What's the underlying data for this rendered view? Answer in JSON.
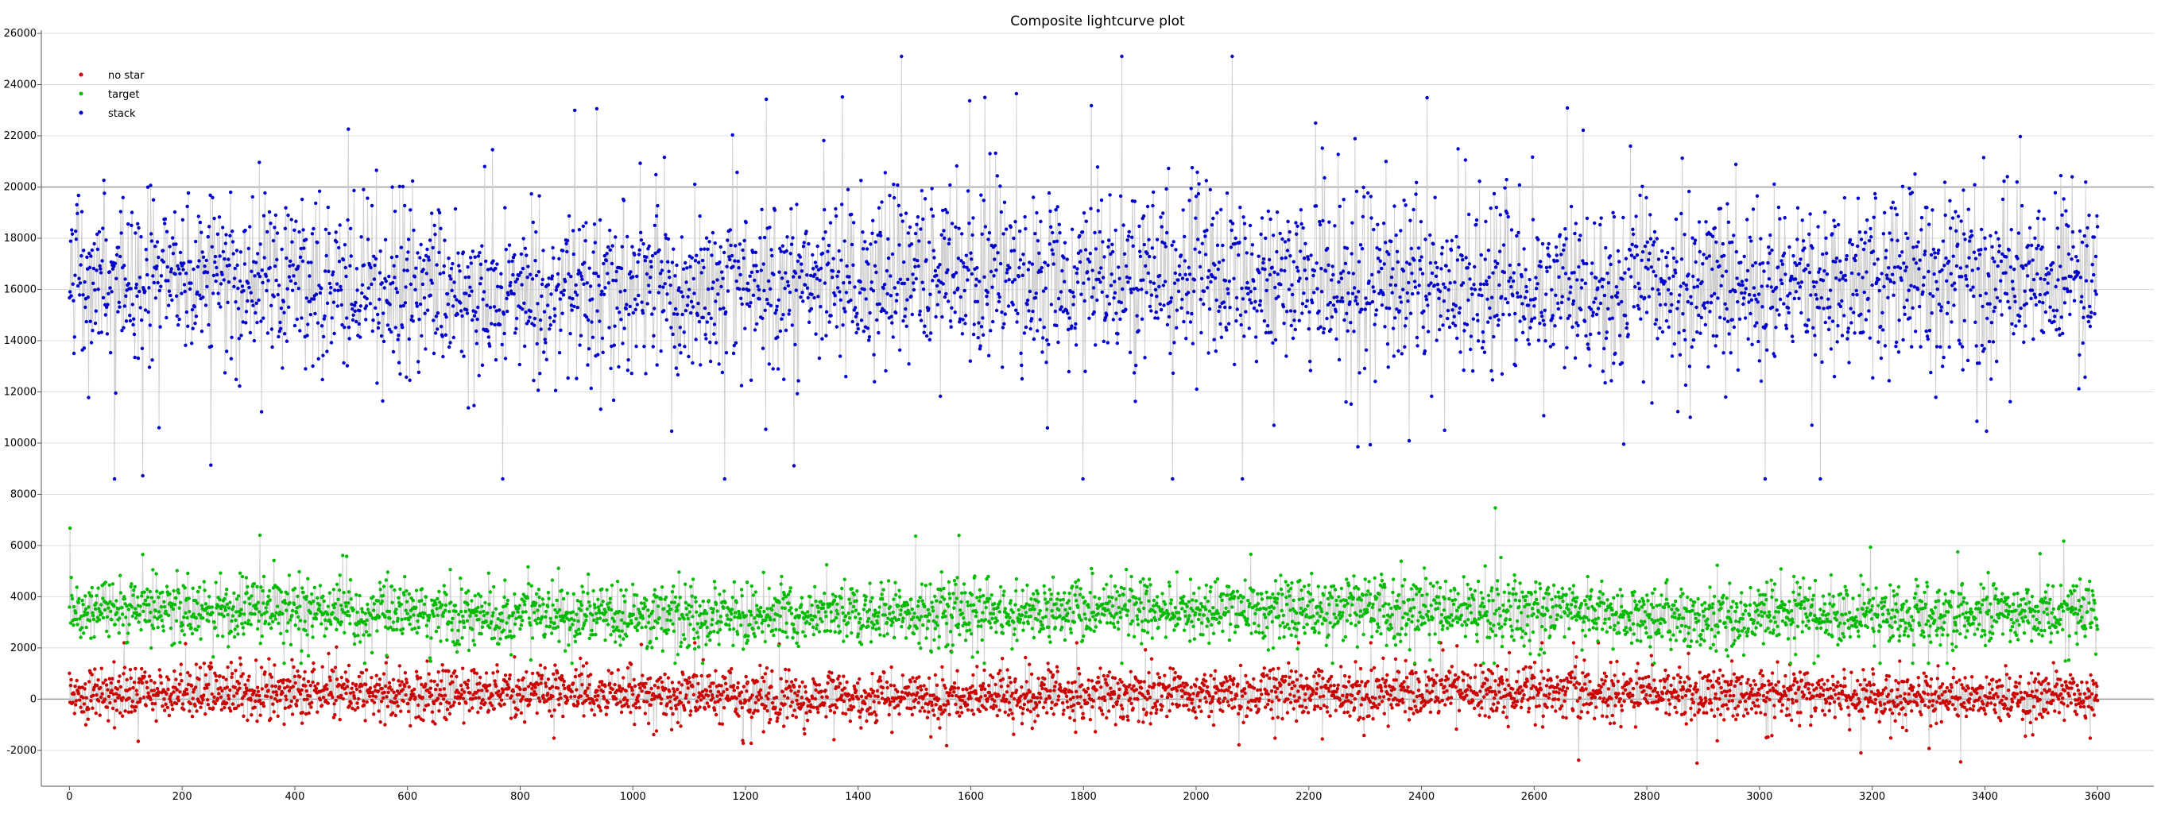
{
  "chart_data": {
    "type": "scatter",
    "title": "Composite lightcurve plot",
    "xlabel": "",
    "ylabel": "",
    "xlim": [
      -50,
      3700
    ],
    "ylim": [
      -3400,
      26000
    ],
    "x_ticks": [
      "0",
      "200",
      "400",
      "600",
      "800",
      "1000",
      "1200",
      "1400",
      "1600",
      "1800",
      "2000",
      "2200",
      "2400",
      "2600",
      "2800",
      "3000",
      "3200",
      "3400",
      "3600"
    ],
    "y_ticks": [
      "-2000",
      "0",
      "2000",
      "4000",
      "6000",
      "8000",
      "10000",
      "12000",
      "14000",
      "16000",
      "18000",
      "20000",
      "22000",
      "24000",
      "26000"
    ],
    "grid": true,
    "legend_position": "top-left",
    "connecting_line_color": "#c8c8c8",
    "n_points": 3600,
    "series": [
      {
        "name": "no star",
        "color": "#cc0000",
        "mean": 200,
        "spread": 800,
        "min": -2500,
        "max": 2200
      },
      {
        "name": "target",
        "color": "#00bb00",
        "mean": 3400,
        "spread": 1000,
        "min": 1400,
        "max": 7800
      },
      {
        "name": "stack",
        "color": "#0000cc",
        "mean": 16300,
        "spread": 2600,
        "min": 8600,
        "max": 25100
      }
    ]
  }
}
